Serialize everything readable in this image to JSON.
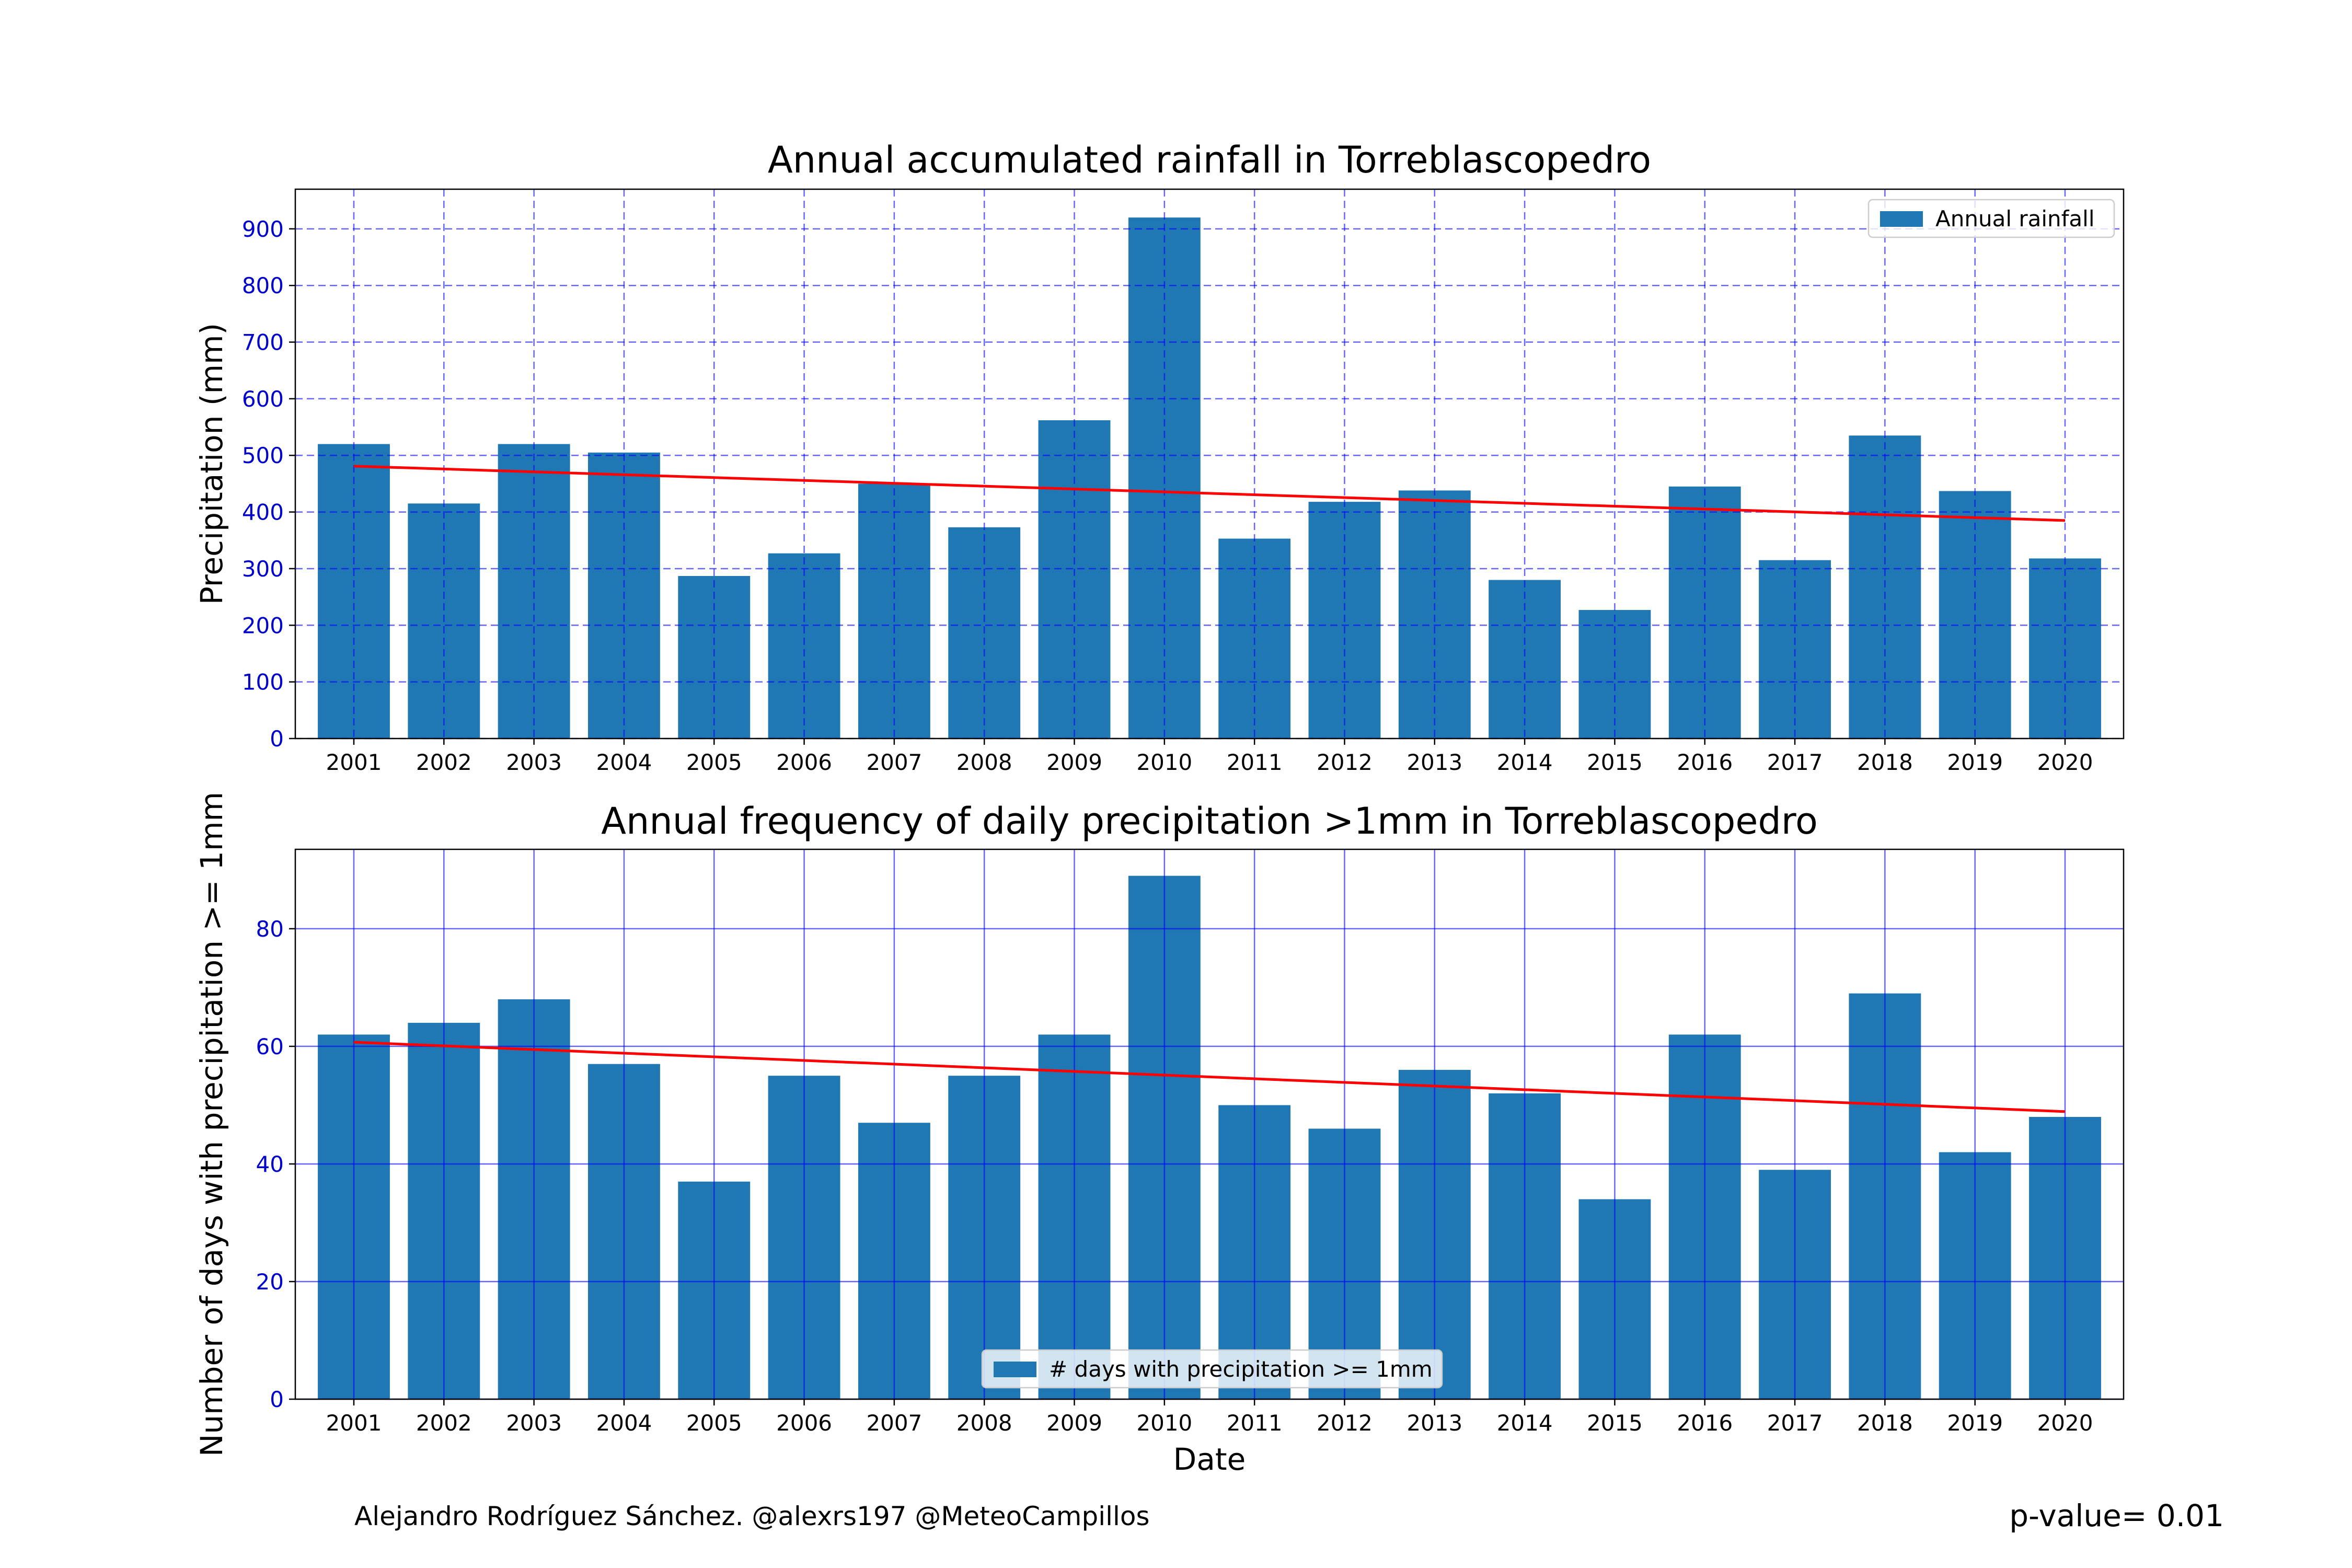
{
  "footer": {
    "credit": "Alejandro Rodríguez Sánchez. @alexrs197 @MeteoCampillos",
    "p_value": "p-value= 0.01"
  },
  "colors": {
    "bar": "#1f77b4",
    "trend": "#ff0000",
    "grid": "#0000ff",
    "ytick": "#0000cc"
  },
  "chart_data": [
    {
      "type": "bar",
      "title": "Annual accumulated rainfall in Torreblascopedro",
      "xlabel": "",
      "ylabel": "Precipitation (mm)",
      "categories": [
        "2001",
        "2002",
        "2003",
        "2004",
        "2005",
        "2006",
        "2007",
        "2008",
        "2009",
        "2010",
        "2011",
        "2012",
        "2013",
        "2014",
        "2015",
        "2016",
        "2017",
        "2018",
        "2019",
        "2020"
      ],
      "series": [
        {
          "name": "Annual rainfall",
          "values": [
            520,
            415,
            520,
            505,
            287,
            327,
            450,
            373,
            562,
            920,
            353,
            418,
            438,
            280,
            227,
            445,
            315,
            535,
            437,
            318
          ]
        }
      ],
      "trend": {
        "start": 481,
        "end": 385
      },
      "ylim": [
        0,
        970
      ],
      "yticks": [
        0,
        100,
        200,
        300,
        400,
        500,
        600,
        700,
        800,
        900
      ],
      "grid": true,
      "grid_style": "dashed",
      "legend": "top-right"
    },
    {
      "type": "bar",
      "title": "Annual frequency of daily precipitation >1mm in Torreblascopedro",
      "xlabel": "Date",
      "ylabel": "Number of days with precipitation >= 1mm",
      "categories": [
        "2001",
        "2002",
        "2003",
        "2004",
        "2005",
        "2006",
        "2007",
        "2008",
        "2009",
        "2010",
        "2011",
        "2012",
        "2013",
        "2014",
        "2015",
        "2016",
        "2017",
        "2018",
        "2019",
        "2020"
      ],
      "series": [
        {
          "name": "# days with precipitation >= 1mm",
          "values": [
            62,
            64,
            68,
            57,
            37,
            55,
            47,
            55,
            62,
            89,
            50,
            46,
            56,
            52,
            34,
            62,
            39,
            69,
            42,
            48
          ]
        }
      ],
      "trend": {
        "start": 60.7,
        "end": 48.9
      },
      "ylim": [
        0,
        93.5
      ],
      "yticks": [
        0,
        20,
        40,
        60,
        80
      ],
      "grid": true,
      "grid_style": "solid",
      "legend": "bottom-center"
    }
  ]
}
